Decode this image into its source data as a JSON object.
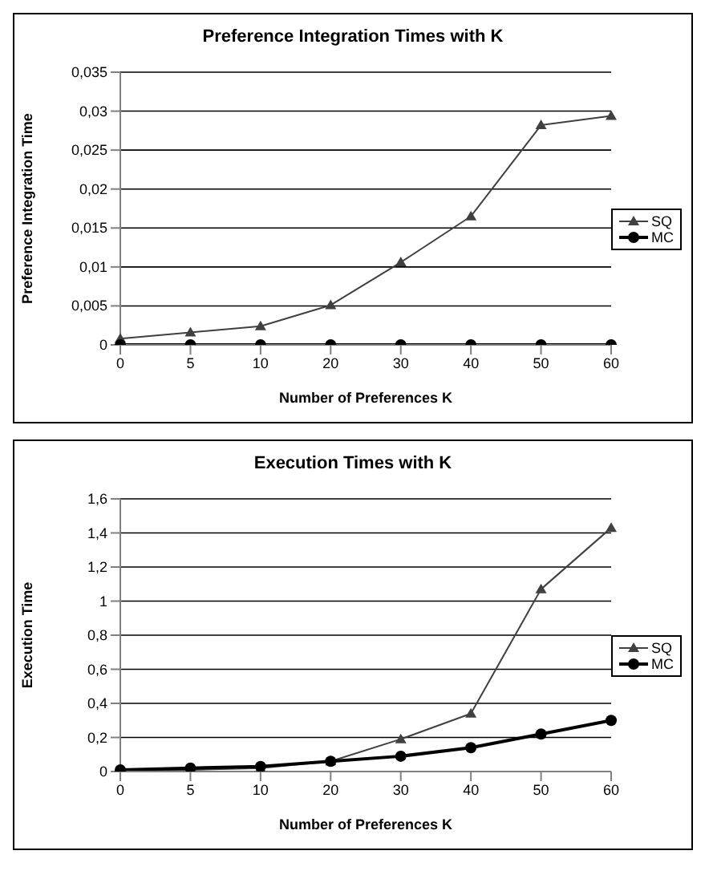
{
  "chart_data": [
    {
      "type": "line",
      "title": "Preference Integration Times with K",
      "xlabel": "Number of Preferences K",
      "ylabel": "Preference Integration Time",
      "categories": [
        "0",
        "5",
        "10",
        "20",
        "30",
        "40",
        "50",
        "60"
      ],
      "series": [
        {
          "name": "SQ",
          "color": "#404040",
          "marker": "triangle",
          "values": [
            0.0008,
            0.0016,
            0.0024,
            0.0051,
            0.0106,
            0.0165,
            0.0282,
            0.0294
          ]
        },
        {
          "name": "MC",
          "color": "#000000",
          "marker": "circle",
          "values": [
            0,
            0,
            0,
            0,
            0,
            0,
            0,
            0
          ]
        }
      ],
      "ylim": [
        0,
        0.035
      ],
      "yticks": [
        {
          "value": 0,
          "label": "0"
        },
        {
          "value": 0.005,
          "label": "0,005"
        },
        {
          "value": 0.01,
          "label": "0,01"
        },
        {
          "value": 0.015,
          "label": "0,015"
        },
        {
          "value": 0.02,
          "label": "0,02"
        },
        {
          "value": 0.025,
          "label": "0,025"
        },
        {
          "value": 0.03,
          "label": "0,03"
        },
        {
          "value": 0.035,
          "label": "0,035"
        }
      ],
      "grid": "y",
      "legend": "right"
    },
    {
      "type": "line",
      "title": "Execution Times with K",
      "xlabel": "Number of Preferences K",
      "ylabel": "Execution Time",
      "categories": [
        "0",
        "5",
        "10",
        "20",
        "30",
        "40",
        "50",
        "60"
      ],
      "series": [
        {
          "name": "SQ",
          "color": "#404040",
          "marker": "triangle",
          "values": [
            0.01,
            0.01,
            0.02,
            0.06,
            0.19,
            0.34,
            1.07,
            1.43
          ]
        },
        {
          "name": "MC",
          "color": "#000000",
          "marker": "circle",
          "values": [
            0.01,
            0.02,
            0.03,
            0.06,
            0.09,
            0.14,
            0.22,
            0.3
          ]
        }
      ],
      "ylim": [
        0,
        1.6
      ],
      "yticks": [
        {
          "value": 0,
          "label": "0"
        },
        {
          "value": 0.2,
          "label": "0,2"
        },
        {
          "value": 0.4,
          "label": "0,4"
        },
        {
          "value": 0.6,
          "label": "0,6"
        },
        {
          "value": 0.8,
          "label": "0,8"
        },
        {
          "value": 1,
          "label": "1"
        },
        {
          "value": 1.2,
          "label": "1,2"
        },
        {
          "value": 1.4,
          "label": "1,4"
        },
        {
          "value": 1.6,
          "label": "1,6"
        }
      ],
      "grid": "y",
      "legend": "right"
    }
  ]
}
